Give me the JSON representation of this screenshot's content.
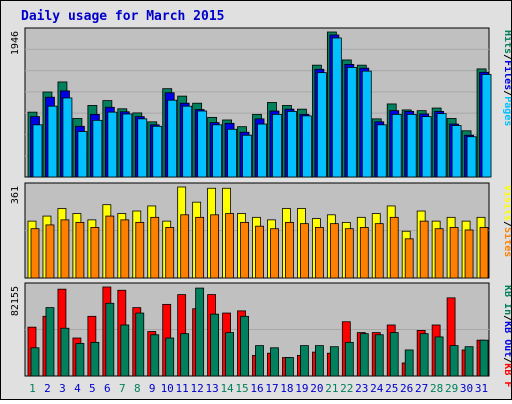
{
  "title": "Daily usage for March 2015",
  "colors": {
    "background": "#e0e0e0",
    "panel": "#c0c0c0",
    "title": "#0000cc",
    "hits": "#00805c",
    "files": "#0000e6",
    "pages": "#00c0ff",
    "visits": "#ffff00",
    "sites": "#ff8000",
    "kb_in": "#00805c",
    "kb_out": "#0000e6",
    "kb_f": "#ff0000",
    "weekend": "#00805c",
    "weekday": "#0000cc"
  },
  "chart_data": [
    {
      "type": "bar",
      "panel": "hits-files-pages",
      "ymax_label": "1946",
      "legend": [
        "Hits",
        "Files",
        "Pages"
      ],
      "legend_separator": "/",
      "x": [
        1,
        2,
        3,
        4,
        5,
        6,
        7,
        8,
        9,
        10,
        11,
        12,
        13,
        14,
        15,
        16,
        17,
        18,
        19,
        20,
        21,
        22,
        23,
        24,
        25,
        26,
        27,
        28,
        29,
        30,
        31
      ],
      "series": [
        {
          "name": "Hits",
          "values": [
            870,
            1140,
            1275,
            785,
            960,
            1025,
            915,
            860,
            740,
            1185,
            1085,
            990,
            800,
            765,
            675,
            840,
            1000,
            960,
            910,
            1500,
            1945,
            1570,
            1500,
            780,
            980,
            900,
            890,
            925,
            785,
            620,
            1450
          ]
        },
        {
          "name": "Files",
          "values": [
            810,
            1070,
            1155,
            680,
            840,
            935,
            875,
            810,
            700,
            1130,
            990,
            905,
            730,
            720,
            600,
            780,
            885,
            910,
            840,
            1445,
            1905,
            1510,
            1460,
            740,
            890,
            880,
            845,
            880,
            710,
            560,
            1405
          ]
        },
        {
          "name": "Pages",
          "values": [
            700,
            950,
            1060,
            610,
            760,
            870,
            845,
            780,
            680,
            1030,
            950,
            885,
            700,
            640,
            560,
            710,
            840,
            880,
            820,
            1400,
            1865,
            1470,
            1420,
            700,
            840,
            840,
            810,
            850,
            690,
            540,
            1375
          ]
        }
      ]
    },
    {
      "type": "bar",
      "panel": "visits-sites",
      "ymax_label": "361",
      "legend": [
        "Visits",
        "Sites"
      ],
      "legend_separator": "/",
      "x": [
        1,
        2,
        3,
        4,
        5,
        6,
        7,
        8,
        9,
        10,
        11,
        12,
        13,
        14,
        15,
        16,
        17,
        18,
        19,
        20,
        21,
        22,
        23,
        24,
        25,
        26,
        27,
        28,
        29,
        30,
        31
      ],
      "series": [
        {
          "name": "Visits",
          "values": [
            225,
            245,
            275,
            255,
            230,
            290,
            255,
            265,
            285,
            225,
            360,
            300,
            355,
            355,
            255,
            240,
            230,
            275,
            275,
            235,
            250,
            220,
            240,
            255,
            285,
            185,
            265,
            225,
            240,
            225,
            240
          ]
        },
        {
          "name": "Sites",
          "values": [
            195,
            210,
            230,
            220,
            200,
            245,
            230,
            220,
            240,
            200,
            250,
            240,
            250,
            255,
            220,
            205,
            195,
            220,
            215,
            200,
            215,
            195,
            200,
            215,
            240,
            155,
            225,
            195,
            200,
            190,
            200
          ]
        }
      ]
    },
    {
      "type": "bar",
      "panel": "kb",
      "ymax_label": "82155",
      "legend": [
        "KB F",
        "KB In",
        "KB Out"
      ],
      "legend_separator": "/",
      "x": [
        1,
        2,
        3,
        4,
        5,
        6,
        7,
        8,
        9,
        10,
        11,
        12,
        13,
        14,
        15,
        16,
        17,
        18,
        19,
        20,
        21,
        22,
        23,
        24,
        25,
        26,
        27,
        28,
        29,
        30,
        31
      ],
      "series": [
        {
          "name": "KB F",
          "values": [
            45000,
            55000,
            80000,
            35000,
            55000,
            82000,
            79000,
            63000,
            41000,
            66000,
            75000,
            62000,
            75000,
            58000,
            60000,
            19000,
            21000,
            17000,
            19000,
            22000,
            21000,
            50000,
            40000,
            40000,
            47000,
            12000,
            42000,
            47000,
            72000,
            24000,
            33000
          ]
        },
        {
          "name": "KB In",
          "values": [
            26000,
            63000,
            44000,
            30000,
            31000,
            67000,
            47000,
            58000,
            38000,
            35000,
            39000,
            81000,
            57000,
            40000,
            55000,
            28000,
            26000,
            17000,
            28000,
            28000,
            27000,
            31000,
            39000,
            38000,
            40000,
            24000,
            39000,
            36000,
            28000,
            27000,
            33000
          ]
        },
        {
          "name": "KB Out",
          "values": [
            0,
            0,
            0,
            0,
            0,
            0,
            0,
            0,
            0,
            0,
            0,
            0,
            0,
            0,
            0,
            0,
            0,
            0,
            0,
            0,
            0,
            0,
            0,
            0,
            0,
            0,
            0,
            0,
            0,
            0,
            0
          ]
        }
      ]
    }
  ],
  "weekend_days": [
    1,
    7,
    8,
    14,
    15,
    21,
    22,
    28,
    29
  ]
}
